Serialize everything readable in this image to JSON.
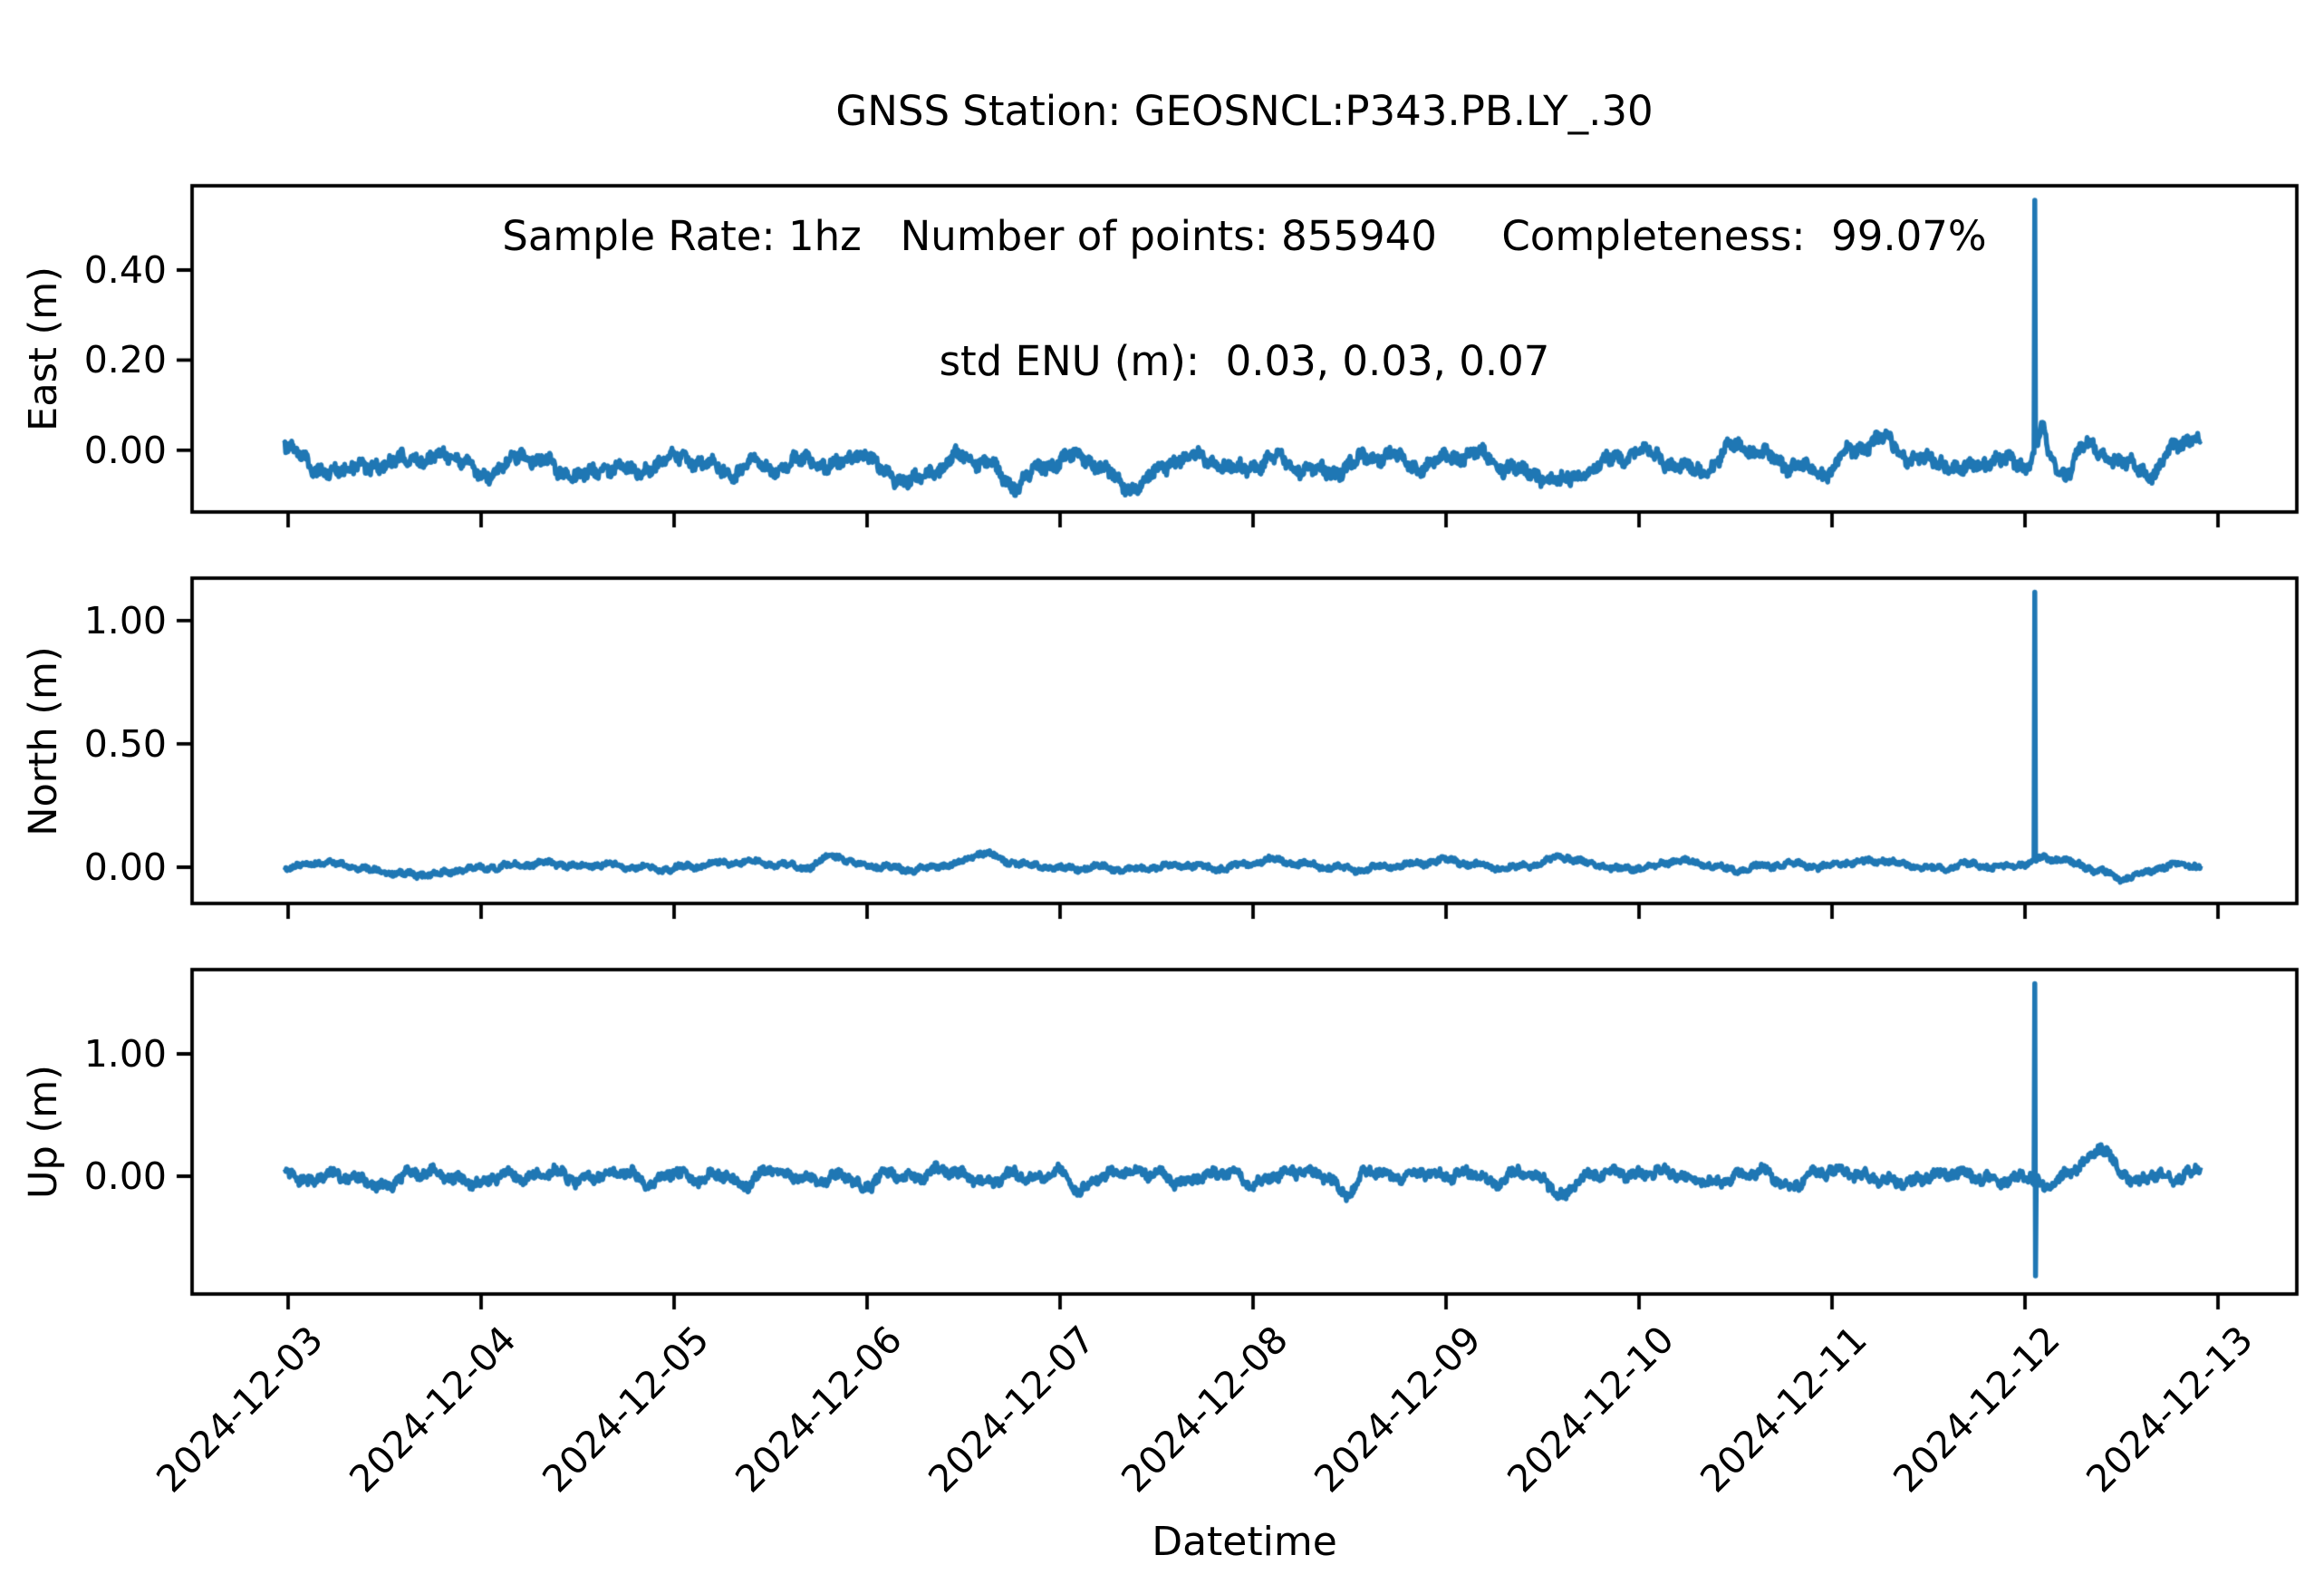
{
  "figure": {
    "title_lines": [
      "GNSS Station: GEOSNCL:P343.PB.LY_.30",
      "Sample Rate: 1hz   Number of points: 855940     Completeness:  99.07%",
      "std ENU (m):  0.03, 0.03, 0.07"
    ],
    "xlabel": "Datetime",
    "background": "#ffffff",
    "text_color": "#000000",
    "axis_color": "#000000"
  },
  "chart_data": {
    "type": "line",
    "title": "GNSS Station: GEOSNCL:P343.PB.LY_.30",
    "line_color": "#1f77b4",
    "grid": false,
    "legend": "none",
    "stats": {
      "station": "GEOSNCL:P343.PB.LY_.30",
      "sample_rate": "1hz",
      "number_of_points": 855940,
      "completeness_percent": 99.07,
      "std_enu_m": [
        0.03,
        0.03,
        0.07
      ]
    },
    "x_tick_labels": [
      "2024-12-03",
      "2024-12-04",
      "2024-12-05",
      "2024-12-06",
      "2024-12-07",
      "2024-12-08",
      "2024-12-09",
      "2024-12-10",
      "2024-12-11",
      "2024-12-12",
      "2024-12-13"
    ],
    "x_axis": {
      "label": "Datetime",
      "units": "date",
      "tick_interval_days": 1,
      "xlim_days": [
        -0.497,
        10.41
      ],
      "data_span_days": [
        -0.02,
        9.91
      ]
    },
    "subplots": [
      {
        "ylabel": "East (m)",
        "yticks": [
          0.4,
          0.2,
          0.0
        ],
        "ytick_labels": [
          "0.40",
          "0.20",
          "0.00"
        ],
        "ylim": [
          -0.137,
          0.587
        ],
        "spike": {
          "day": 9.052,
          "peak": 0.555
        },
        "noise": {
          "a1": 0.008,
          "p1": 0.21,
          "a2": 0.006,
          "p2": 0.07,
          "jitter": 0.013
        },
        "keypoints": [
          [
            0,
            0.02
          ],
          [
            0.06,
            -0.01
          ],
          [
            0.12,
            -0.045
          ],
          [
            0.22,
            -0.04
          ],
          [
            0.3,
            -0.05
          ],
          [
            0.38,
            -0.03
          ],
          [
            0.5,
            -0.04
          ],
          [
            0.6,
            -0.01
          ],
          [
            0.72,
            -0.03
          ],
          [
            0.8,
            0
          ],
          [
            0.92,
            -0.03
          ],
          [
            1.0,
            -0.055
          ],
          [
            1.1,
            -0.04
          ],
          [
            1.22,
            -0.01
          ],
          [
            1.3,
            -0.02
          ],
          [
            1.42,
            -0.05
          ],
          [
            1.55,
            -0.055
          ],
          [
            1.68,
            -0.035
          ],
          [
            1.8,
            -0.05
          ],
          [
            1.92,
            -0.03
          ],
          [
            2.05,
            -0.015
          ],
          [
            2.18,
            -0.035
          ],
          [
            2.3,
            -0.05
          ],
          [
            2.42,
            -0.03
          ],
          [
            2.55,
            -0.045
          ],
          [
            2.68,
            -0.015
          ],
          [
            2.8,
            -0.04
          ],
          [
            2.95,
            -0.005
          ],
          [
            3.1,
            -0.05
          ],
          [
            3.22,
            -0.072
          ],
          [
            3.35,
            -0.045
          ],
          [
            3.5,
            -0.01
          ],
          [
            3.62,
            -0.03
          ],
          [
            3.75,
            -0.078
          ],
          [
            3.9,
            -0.04
          ],
          [
            4.05,
            -0.012
          ],
          [
            4.2,
            -0.03
          ],
          [
            4.35,
            -0.088
          ],
          [
            4.5,
            -0.05
          ],
          [
            4.65,
            -0.01
          ],
          [
            4.8,
            -0.028
          ],
          [
            4.95,
            -0.045
          ],
          [
            5.1,
            -0.018
          ],
          [
            5.25,
            -0.038
          ],
          [
            5.4,
            -0.05
          ],
          [
            5.55,
            -0.022
          ],
          [
            5.7,
            -0.008
          ],
          [
            5.85,
            -0.038
          ],
          [
            6.0,
            -0.02
          ],
          [
            6.15,
            -0.005
          ],
          [
            6.3,
            -0.035
          ],
          [
            6.45,
            -0.055
          ],
          [
            6.6,
            -0.07
          ],
          [
            6.75,
            -0.04
          ],
          [
            6.9,
            -0.012
          ],
          [
            7.05,
            -0.002
          ],
          [
            7.2,
            -0.038
          ],
          [
            7.35,
            -0.045
          ],
          [
            7.5,
            0.012
          ],
          [
            7.65,
            -0.012
          ],
          [
            7.8,
            -0.035
          ],
          [
            7.95,
            -0.05
          ],
          [
            8.1,
            -0.005
          ],
          [
            8.25,
            0.028
          ],
          [
            8.4,
            -0.015
          ],
          [
            8.55,
            -0.028
          ],
          [
            8.7,
            -0.042
          ],
          [
            8.85,
            -0.02
          ],
          [
            9.0,
            -0.035
          ],
          [
            9.07,
            0.02
          ],
          [
            9.09,
            0.07
          ],
          [
            9.13,
            -0.03
          ],
          [
            9.2,
            -0.055
          ],
          [
            9.3,
            0.01
          ],
          [
            9.42,
            -0.01
          ],
          [
            9.55,
            -0.035
          ],
          [
            9.65,
            -0.05
          ],
          [
            9.78,
            0.005
          ],
          [
            9.88,
            0.035
          ],
          [
            9.91,
            0.02
          ]
        ]
      },
      {
        "ylabel": "North (m)",
        "yticks": [
          1.0,
          0.5,
          0.0
        ],
        "ytick_labels": [
          "1.00",
          "0.50",
          "0.00"
        ],
        "ylim": [
          -0.147,
          1.172
        ],
        "spike": {
          "day": 9.052,
          "peak": 1.115
        },
        "noise": {
          "a1": 0.006,
          "p1": 0.18,
          "a2": 0.004,
          "p2": 0.06,
          "jitter": 0.009
        },
        "keypoints": [
          [
            0,
            -0.005
          ],
          [
            0.15,
            0.02
          ],
          [
            0.3,
            0.01
          ],
          [
            0.45,
            -0.015
          ],
          [
            0.6,
            -0.028
          ],
          [
            0.75,
            -0.03
          ],
          [
            0.9,
            -0.01
          ],
          [
            1.05,
            0
          ],
          [
            1.2,
            0.008
          ],
          [
            1.35,
            0.016
          ],
          [
            1.5,
            0.004
          ],
          [
            1.65,
            0.012
          ],
          [
            1.8,
            0
          ],
          [
            1.95,
            -0.008
          ],
          [
            2.1,
            0.004
          ],
          [
            2.25,
            0.018
          ],
          [
            2.4,
            0.022
          ],
          [
            2.55,
            0.01
          ],
          [
            2.7,
            0
          ],
          [
            2.82,
            0.05
          ],
          [
            2.95,
            0.012
          ],
          [
            3.1,
            0
          ],
          [
            3.25,
            -0.01
          ],
          [
            3.45,
            0.012
          ],
          [
            3.6,
            0.058
          ],
          [
            3.75,
            0.02
          ],
          [
            3.9,
            0.004
          ],
          [
            4.05,
            -0.006
          ],
          [
            4.2,
            0.002
          ],
          [
            4.35,
            -0.012
          ],
          [
            4.5,
            0
          ],
          [
            4.65,
            0.01
          ],
          [
            4.8,
            -0.006
          ],
          [
            4.95,
            0.008
          ],
          [
            5.1,
            0.03
          ],
          [
            5.25,
            0.012
          ],
          [
            5.4,
            0
          ],
          [
            5.55,
            -0.01
          ],
          [
            5.7,
            0.004
          ],
          [
            5.85,
            0.014
          ],
          [
            6.0,
            0.03
          ],
          [
            6.15,
            0.01
          ],
          [
            6.3,
            -0.006
          ],
          [
            6.45,
            0.008
          ],
          [
            6.6,
            0.042
          ],
          [
            6.75,
            0.015
          ],
          [
            6.9,
            -0.008
          ],
          [
            7.05,
            0
          ],
          [
            7.2,
            0.028
          ],
          [
            7.35,
            0.01
          ],
          [
            7.5,
            -0.012
          ],
          [
            7.65,
            0.004
          ],
          [
            7.8,
            0.014
          ],
          [
            7.95,
            0
          ],
          [
            8.1,
            0.02
          ],
          [
            8.25,
            0.028
          ],
          [
            8.4,
            0.008
          ],
          [
            8.55,
            -0.006
          ],
          [
            8.7,
            0.012
          ],
          [
            8.85,
            0
          ],
          [
            9.0,
            0.012
          ],
          [
            9.1,
            0.038
          ],
          [
            9.18,
            0.032
          ],
          [
            9.28,
            0.01
          ],
          [
            9.38,
            -0.015
          ],
          [
            9.5,
            -0.045
          ],
          [
            9.6,
            -0.028
          ],
          [
            9.72,
            0.002
          ],
          [
            9.82,
            0.012
          ],
          [
            9.91,
            0.005
          ]
        ]
      },
      {
        "ylabel": "Up (m)",
        "yticks": [
          1.0,
          0.0
        ],
        "ytick_labels": [
          "1.00",
          "0.00"
        ],
        "ylim": [
          -0.963,
          1.689
        ],
        "spike": {
          "day": 9.052,
          "peak": 1.575,
          "trough": -0.815
        },
        "noise": {
          "a1": 0.022,
          "p1": 0.13,
          "a2": 0.012,
          "p2": 0.045,
          "jitter": 0.035
        },
        "keypoints": [
          [
            0,
            0.03
          ],
          [
            0.1,
            -0.055
          ],
          [
            0.2,
            0.02
          ],
          [
            0.35,
            -0.02
          ],
          [
            0.5,
            -0.09
          ],
          [
            0.62,
            0.015
          ],
          [
            0.75,
            0.03
          ],
          [
            0.88,
            -0.03
          ],
          [
            1.0,
            -0.05
          ],
          [
            1.12,
            0.02
          ],
          [
            1.25,
            -0.01
          ],
          [
            1.38,
            0.04
          ],
          [
            1.5,
            -0.04
          ],
          [
            1.62,
            0.01
          ],
          [
            1.75,
            0.03
          ],
          [
            1.88,
            -0.06
          ],
          [
            2.0,
            0.04
          ],
          [
            2.12,
            -0.03
          ],
          [
            2.25,
            0.02
          ],
          [
            2.35,
            -0.08
          ],
          [
            2.5,
            0.05
          ],
          [
            2.62,
            0
          ],
          [
            2.75,
            -0.04
          ],
          [
            2.88,
            0.02
          ],
          [
            2.98,
            -0.1
          ],
          [
            3.1,
            0.03
          ],
          [
            3.25,
            -0.01
          ],
          [
            3.38,
            0.05
          ],
          [
            3.5,
            0.01
          ],
          [
            3.62,
            -0.06
          ],
          [
            3.75,
            0.02
          ],
          [
            3.88,
            -0.02
          ],
          [
            4.0,
            0.04
          ],
          [
            4.1,
            -0.12
          ],
          [
            4.22,
            0.01
          ],
          [
            4.35,
            0.04
          ],
          [
            4.5,
            0.02
          ],
          [
            4.62,
            -0.05
          ],
          [
            4.75,
            0
          ],
          [
            4.88,
            0.03
          ],
          [
            5.0,
            -0.07
          ],
          [
            5.12,
            0.01
          ],
          [
            5.25,
            0.04
          ],
          [
            5.38,
            0
          ],
          [
            5.48,
            -0.15
          ],
          [
            5.6,
            0.05
          ],
          [
            5.75,
            -0.01
          ],
          [
            5.88,
            0.03
          ],
          [
            6.0,
            0
          ],
          [
            6.12,
            0.03
          ],
          [
            6.25,
            -0.06
          ],
          [
            6.38,
            0.04
          ],
          [
            6.5,
            -0.02
          ],
          [
            6.6,
            -0.17
          ],
          [
            6.72,
            0
          ],
          [
            6.85,
            0.03
          ],
          [
            7.0,
            0.01
          ],
          [
            7.12,
            0.05
          ],
          [
            7.25,
            -0.02
          ],
          [
            7.4,
            -0.06
          ],
          [
            7.52,
            0.01
          ],
          [
            7.65,
            0.04
          ],
          [
            7.78,
            -0.1
          ],
          [
            7.9,
            0.02
          ],
          [
            8.02,
            0.05
          ],
          [
            8.15,
            0
          ],
          [
            8.28,
            -0.03
          ],
          [
            8.4,
            -0.05
          ],
          [
            8.52,
            0.01
          ],
          [
            8.65,
            0.03
          ],
          [
            8.78,
            -0.02
          ],
          [
            8.9,
            -0.04
          ],
          [
            9.0,
            0.01
          ],
          [
            9.1,
            -0.08
          ],
          [
            9.2,
            0
          ],
          [
            9.32,
            0.12
          ],
          [
            9.4,
            0.24
          ],
          [
            9.5,
            0.03
          ],
          [
            9.58,
            -0.05
          ],
          [
            9.68,
            0.02
          ],
          [
            9.78,
            -0.02
          ],
          [
            9.85,
            0.02
          ],
          [
            9.91,
            0.07
          ]
        ]
      }
    ]
  }
}
